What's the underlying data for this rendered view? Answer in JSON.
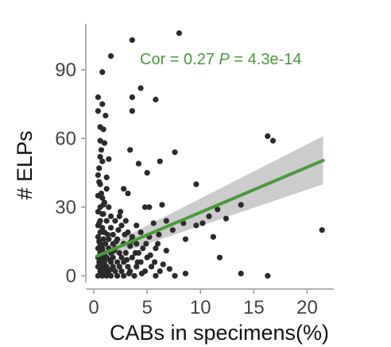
{
  "chart_data": {
    "type": "scatter",
    "xlabel": "CABs in specimens(%)",
    "ylabel": "# ELPs",
    "xlim": [
      -0.6,
      22.5
    ],
    "ylim": [
      -3,
      108
    ],
    "x_ticks": [
      0,
      5,
      10,
      15,
      20
    ],
    "y_ticks": [
      0,
      30,
      60,
      90
    ],
    "annotation": {
      "cor_text": "Cor = 0.27",
      "p_label": "P",
      "p_text": " = 4.3e-14"
    },
    "colors": {
      "points": "#2b2b2b",
      "fit_line": "#4a9a3c",
      "ci_band": "#cccccc",
      "annotation": "#4a9a3c",
      "axis": "#999999"
    },
    "fit": {
      "x": [
        0.3,
        21.5
      ],
      "y": [
        8.6,
        50.4
      ],
      "ci_lower": [
        6.5,
        40.0
      ],
      "ci_upper": [
        10.8,
        61.0
      ]
    },
    "points": [
      [
        3.6,
        103
      ],
      [
        8.0,
        106
      ],
      [
        1.6,
        96
      ],
      [
        0.8,
        89
      ],
      [
        4.4,
        82
      ],
      [
        0.4,
        78
      ],
      [
        3.6,
        78
      ],
      [
        0.8,
        75
      ],
      [
        5.8,
        77
      ],
      [
        0.4,
        72
      ],
      [
        3.6,
        72
      ],
      [
        1.1,
        70
      ],
      [
        0.6,
        65
      ],
      [
        0.6,
        59
      ],
      [
        1.0,
        58
      ],
      [
        3.4,
        55
      ],
      [
        7.6,
        54
      ],
      [
        0.6,
        52
      ],
      [
        1.4,
        51
      ],
      [
        0.8,
        50
      ],
      [
        6.2,
        50
      ],
      [
        4.2,
        49
      ],
      [
        5.0,
        45
      ],
      [
        0.4,
        44
      ],
      [
        1.2,
        43
      ],
      [
        16.3,
        61
      ],
      [
        16.8,
        59
      ],
      [
        0.6,
        40
      ],
      [
        1.2,
        38
      ],
      [
        2.8,
        38
      ],
      [
        3.2,
        36
      ],
      [
        9.6,
        40
      ],
      [
        0.4,
        35
      ],
      [
        0.8,
        34
      ],
      [
        1.0,
        32
      ],
      [
        0.6,
        30
      ],
      [
        1.4,
        30
      ],
      [
        4.8,
        30
      ],
      [
        5.2,
        30
      ],
      [
        6.4,
        31
      ],
      [
        13.8,
        31
      ],
      [
        0.4,
        28
      ],
      [
        0.8,
        27
      ],
      [
        1.6,
        26
      ],
      [
        2.4,
        26
      ],
      [
        11.6,
        29
      ],
      [
        0.6,
        24
      ],
      [
        1.2,
        24
      ],
      [
        2.0,
        24
      ],
      [
        3.0,
        24
      ],
      [
        6.8,
        24
      ],
      [
        10.8,
        26
      ],
      [
        12.4,
        25
      ],
      [
        0.4,
        22
      ],
      [
        0.8,
        21
      ],
      [
        1.6,
        21
      ],
      [
        2.6,
        22
      ],
      [
        4.0,
        22
      ],
      [
        5.6,
        23
      ],
      [
        8.4,
        23
      ],
      [
        9.6,
        22
      ],
      [
        10.2,
        23
      ],
      [
        0.6,
        19
      ],
      [
        1.0,
        19
      ],
      [
        1.8,
        18
      ],
      [
        3.2,
        19
      ],
      [
        4.4,
        19
      ],
      [
        7.4,
        20
      ],
      [
        0.4,
        17
      ],
      [
        0.9,
        16
      ],
      [
        1.4,
        16
      ],
      [
        2.2,
        16
      ],
      [
        3.6,
        17
      ],
      [
        5.2,
        17
      ],
      [
        11.2,
        17
      ],
      [
        0.6,
        14
      ],
      [
        1.1,
        14
      ],
      [
        1.8,
        14
      ],
      [
        2.8,
        14
      ],
      [
        4.0,
        14
      ],
      [
        6.0,
        14
      ],
      [
        8.6,
        16
      ],
      [
        0.4,
        12
      ],
      [
        0.8,
        12
      ],
      [
        1.4,
        12
      ],
      [
        2.0,
        12
      ],
      [
        3.4,
        13
      ],
      [
        4.6,
        12
      ],
      [
        5.8,
        12
      ],
      [
        0.6,
        10
      ],
      [
        1.0,
        10
      ],
      [
        1.6,
        10
      ],
      [
        2.4,
        10
      ],
      [
        3.0,
        10
      ],
      [
        4.2,
        10
      ],
      [
        6.8,
        11
      ],
      [
        0.4,
        8
      ],
      [
        0.8,
        8
      ],
      [
        1.2,
        8
      ],
      [
        1.8,
        8
      ],
      [
        2.6,
        8
      ],
      [
        3.6,
        8
      ],
      [
        5.0,
        8
      ],
      [
        0.6,
        6
      ],
      [
        1.0,
        6
      ],
      [
        1.6,
        6
      ],
      [
        2.2,
        6
      ],
      [
        2.8,
        6
      ],
      [
        4.4,
        6
      ],
      [
        11.8,
        8
      ],
      [
        0.4,
        4
      ],
      [
        0.8,
        4
      ],
      [
        1.2,
        4
      ],
      [
        1.8,
        4
      ],
      [
        2.4,
        4
      ],
      [
        3.2,
        4
      ],
      [
        4.0,
        4
      ],
      [
        5.4,
        4
      ],
      [
        0.6,
        2
      ],
      [
        1.0,
        2
      ],
      [
        1.4,
        2
      ],
      [
        2.0,
        2
      ],
      [
        2.6,
        2
      ],
      [
        3.4,
        2
      ],
      [
        4.8,
        2
      ],
      [
        6.2,
        2
      ],
      [
        0.4,
        0
      ],
      [
        0.8,
        0
      ],
      [
        1.2,
        0
      ],
      [
        1.6,
        0
      ],
      [
        2.2,
        0
      ],
      [
        2.8,
        0
      ],
      [
        3.8,
        0
      ],
      [
        5.8,
        0
      ],
      [
        8.6,
        1
      ],
      [
        7.6,
        0
      ],
      [
        13.8,
        1
      ],
      [
        16.3,
        0
      ],
      [
        21.4,
        20
      ],
      [
        0.5,
        47
      ],
      [
        0.7,
        36
      ],
      [
        0.9,
        27
      ],
      [
        1.3,
        18
      ],
      [
        0.5,
        15
      ],
      [
        0.7,
        9
      ],
      [
        0.9,
        3
      ],
      [
        1.1,
        1
      ],
      [
        0.5,
        6
      ],
      [
        0.7,
        13
      ],
      [
        0.5,
        23
      ],
      [
        0.9,
        31
      ],
      [
        0.5,
        41
      ],
      [
        0.7,
        55
      ],
      [
        0.9,
        64
      ],
      [
        1.5,
        7
      ],
      [
        1.7,
        3
      ],
      [
        1.9,
        11
      ],
      [
        2.1,
        15
      ],
      [
        2.3,
        20
      ],
      [
        2.5,
        28
      ],
      [
        2.9,
        18
      ],
      [
        3.1,
        7
      ],
      [
        3.3,
        1
      ],
      [
        3.5,
        15
      ],
      [
        3.9,
        10
      ],
      [
        4.1,
        6
      ],
      [
        4.5,
        1
      ],
      [
        4.9,
        14
      ],
      [
        5.3,
        9
      ],
      [
        5.7,
        6
      ],
      [
        6.1,
        18
      ],
      [
        6.5,
        5
      ],
      [
        7.1,
        3
      ]
    ]
  }
}
